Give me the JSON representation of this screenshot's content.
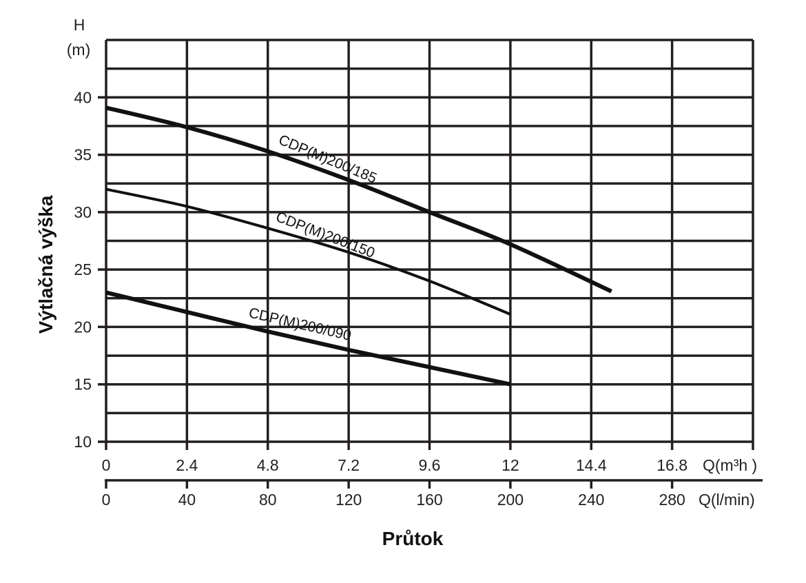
{
  "chart_data": {
    "type": "line",
    "title": "",
    "xlabel": "Průtok",
    "ylabel": "Výtlačná výška",
    "y_unit_label": [
      "H",
      "(m)"
    ],
    "x_primary_unit": "Q(m³h )",
    "x_secondary_unit": "Q(l/min)",
    "ylim": [
      10,
      45
    ],
    "xlim": [
      0,
      320
    ],
    "grid": true,
    "legend_position": "inline labels on curves",
    "y_ticks": [
      10,
      15,
      20,
      25,
      30,
      35,
      40
    ],
    "x_ticks_lmin": [
      0,
      40,
      80,
      120,
      160,
      200,
      240,
      280
    ],
    "x_ticks_m3h": [
      "0",
      "2.4",
      "4.8",
      "7.2",
      "9.6",
      "12",
      "14.4",
      "16.8"
    ],
    "series": [
      {
        "name": "CDP(M)200/185",
        "x_lmin": [
          0,
          40,
          80,
          120,
          160,
          200,
          250
        ],
        "y": [
          39.1,
          37.4,
          35.3,
          32.8,
          30.0,
          27.2,
          23.1
        ]
      },
      {
        "name": "CDP(M)200/150",
        "x_lmin": [
          0,
          40,
          80,
          120,
          160,
          200
        ],
        "y": [
          32.0,
          30.5,
          28.6,
          26.5,
          24.0,
          21.1
        ]
      },
      {
        "name": "CDP(M)200/090",
        "x_lmin": [
          0,
          40,
          80,
          120,
          160,
          200
        ],
        "y": [
          23.0,
          21.3,
          19.6,
          18.0,
          16.5,
          15.0
        ]
      }
    ]
  }
}
